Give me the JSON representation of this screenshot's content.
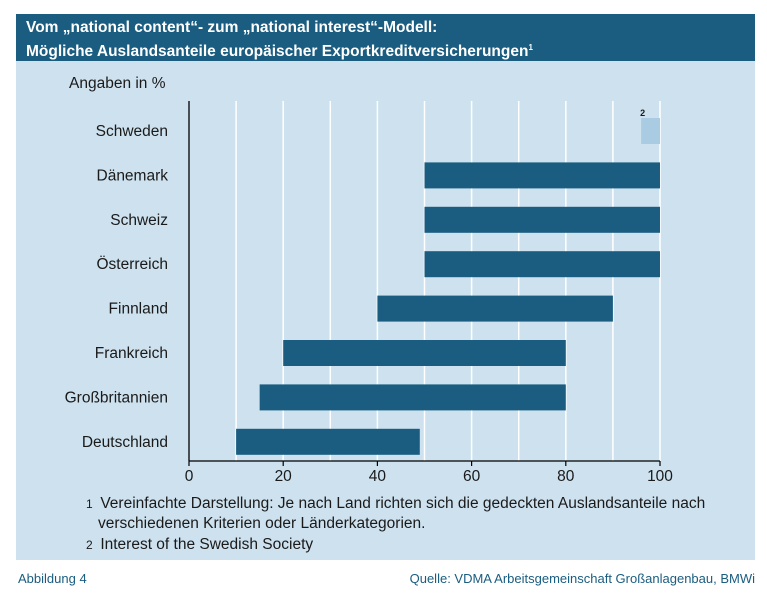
{
  "header": {
    "title_line1": "Vom „national content“- zum „national interest“-Modell:",
    "title_line2": "Mögliche Auslandsanteile europäischer Exportkreditversicherungen",
    "title_sup": "1"
  },
  "chart_data": {
    "type": "bar",
    "orientation": "horizontal-range",
    "unit_label": "Angaben in %",
    "categories": [
      "Schweden",
      "Dänemark",
      "Schweiz",
      "Österreich",
      "Finnland",
      "Frankreich",
      "Großbritannien",
      "Deutschland"
    ],
    "ranges": [
      [
        96,
        100
      ],
      [
        50,
        100
      ],
      [
        50,
        100
      ],
      [
        50,
        100
      ],
      [
        40,
        90
      ],
      [
        20,
        80
      ],
      [
        15,
        80
      ],
      [
        10,
        49
      ]
    ],
    "bar_annotations": [
      "2",
      "",
      "",
      "",
      "",
      "",
      "",
      ""
    ],
    "xlim": [
      0,
      100
    ],
    "xticks": [
      0,
      20,
      40,
      60,
      80,
      100
    ],
    "grid": true,
    "colors": {
      "bar": "#1a5d80",
      "bar_highlight": "#a9cce2",
      "grid": "#ffffff",
      "panel": "#cde1ee"
    }
  },
  "footnotes": {
    "fn1_num": "1",
    "fn1_line1": "Vereinfachte Darstellung: Je nach Land richten sich die gedeckten Auslandsanteile nach",
    "fn1_line2": "verschiedenen Kriterien oder Länderkategorien.",
    "fn2_num": "2",
    "fn2_text": "Interest of the Swedish Society"
  },
  "footer": {
    "figure": "Abbildung 4",
    "source": "Quelle: VDMA Arbeitsgemeinschaft Großanlagenbau, BMWi"
  }
}
